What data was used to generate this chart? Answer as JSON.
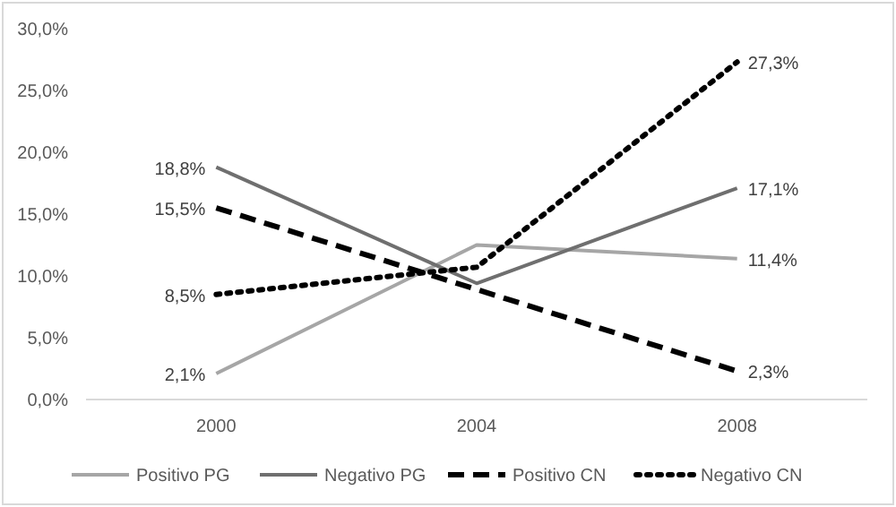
{
  "chart_data": {
    "type": "line",
    "categories": [
      "2000",
      "2004",
      "2008"
    ],
    "series": [
      {
        "name": "Positivo PG",
        "color": "#a6a6a6",
        "line_style": "solid",
        "values": [
          2.1,
          12.5,
          11.4
        ],
        "value_labels": [
          "2,1%",
          null,
          "11,4%"
        ]
      },
      {
        "name": "Negativo PG",
        "color": "#6f6f6f",
        "line_style": "solid",
        "values": [
          18.8,
          9.4,
          17.1
        ],
        "value_labels": [
          "18,8%",
          null,
          "17,1%"
        ]
      },
      {
        "name": "Positivo CN",
        "color": "#000000",
        "line_style": "dashed",
        "values": [
          15.5,
          8.9,
          2.3
        ],
        "value_labels": [
          "15,5%",
          null,
          "2,3%"
        ]
      },
      {
        "name": "Negativo CN",
        "color": "#000000",
        "line_style": "dotted",
        "values": [
          8.5,
          10.7,
          27.3
        ],
        "value_labels": [
          "8,5%",
          null,
          "27,3%"
        ]
      }
    ],
    "ylim": [
      0,
      30
    ],
    "yticks": [
      {
        "value": 0,
        "label": "0,0%"
      },
      {
        "value": 5,
        "label": "5,0%"
      },
      {
        "value": 10,
        "label": "10,0%"
      },
      {
        "value": 15,
        "label": "15,0%"
      },
      {
        "value": 20,
        "label": "20,0%"
      },
      {
        "value": 25,
        "label": "25,0%"
      },
      {
        "value": 30,
        "label": "30,0%"
      }
    ],
    "grid": false,
    "legend": "bottom",
    "marker": "none"
  }
}
